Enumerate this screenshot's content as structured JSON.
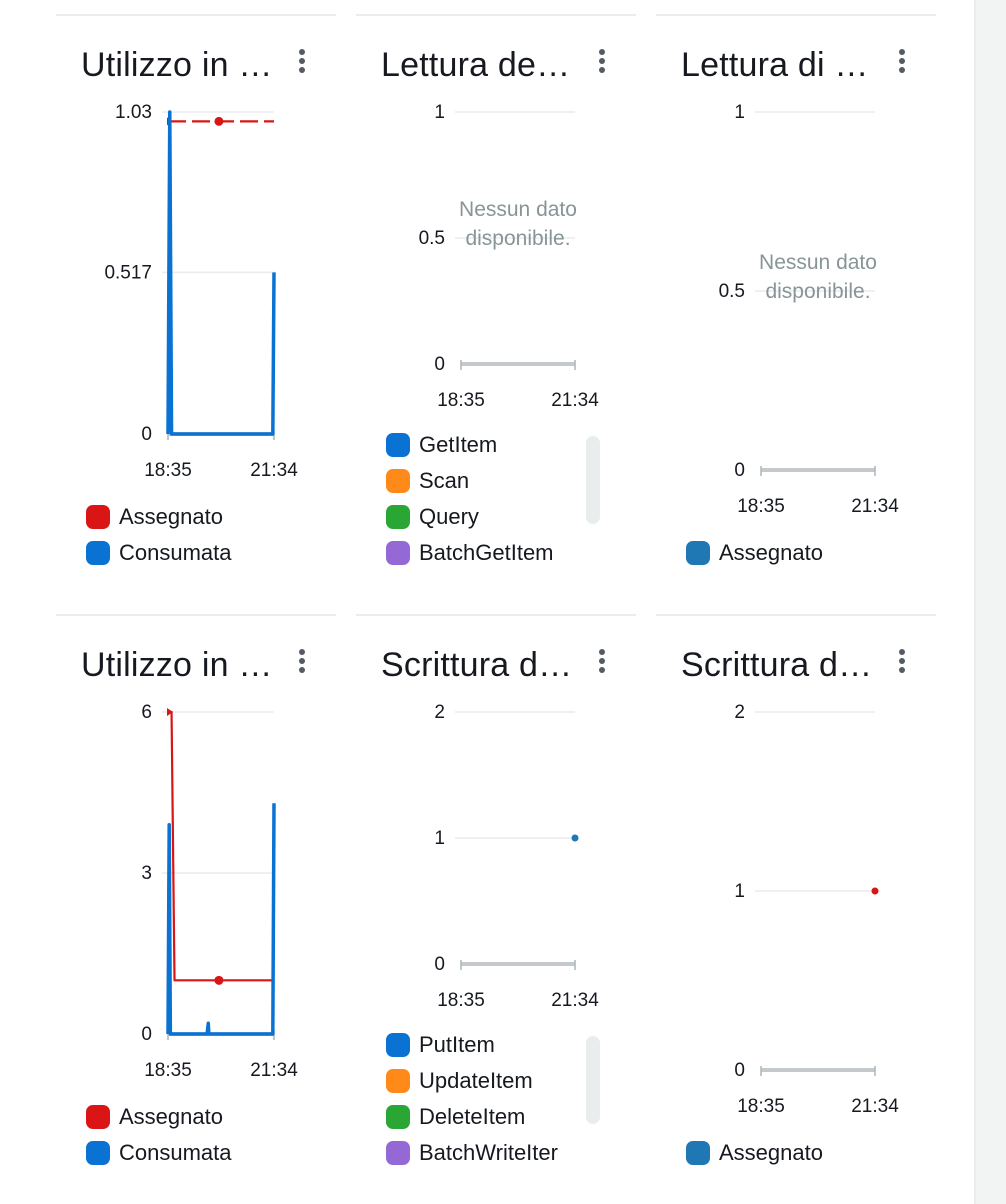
{
  "widgets": [
    {
      "title": "Utilizzo in …",
      "chart": {
        "ylim": [
          0,
          1.03
        ],
        "yticks": [
          "0",
          "0.517",
          "1.03"
        ]
      },
      "legend": [
        {
          "label": "Assegnato",
          "color": "#d91515"
        },
        {
          "label": "Consumata",
          "color": "#0972d3"
        }
      ]
    },
    {
      "title": "Lettura de…",
      "chart": {
        "ylim": [
          0,
          1
        ],
        "yticks": [
          "0",
          "0.5",
          "1"
        ],
        "no_data": [
          "Nessun dato",
          "disponibile."
        ]
      },
      "legend": [
        {
          "label": "GetItem",
          "color": "#0972d3"
        },
        {
          "label": "Scan",
          "color": "#ff8a1a"
        },
        {
          "label": "Query",
          "color": "#29a634"
        },
        {
          "label": "BatchGetItem",
          "color": "#9469d6"
        }
      ]
    },
    {
      "title": "Lettura di …",
      "chart": {
        "ylim": [
          0,
          1
        ],
        "yticks": [
          "0",
          "0.5",
          "1"
        ],
        "no_data": [
          "Nessun dato",
          "disponibile."
        ]
      },
      "legend": [
        {
          "label": "Assegnato",
          "color": "#1f77b4"
        }
      ]
    },
    {
      "title": "Utilizzo in …",
      "chart": {
        "ylim": [
          0,
          6
        ],
        "yticks": [
          "0",
          "3",
          "6"
        ]
      },
      "legend": [
        {
          "label": "Assegnato",
          "color": "#d91515"
        },
        {
          "label": "Consumata",
          "color": "#0972d3"
        }
      ]
    },
    {
      "title": "Scrittura d…",
      "chart": {
        "ylim": [
          0,
          2
        ],
        "yticks": [
          "0",
          "1",
          "2"
        ]
      },
      "legend": [
        {
          "label": "PutItem",
          "color": "#0972d3"
        },
        {
          "label": "UpdateItem",
          "color": "#ff8a1a"
        },
        {
          "label": "DeleteItem",
          "color": "#29a634"
        },
        {
          "label": "BatchWriteIter",
          "color": "#9469d6"
        }
      ]
    },
    {
      "title": "Scrittura d…",
      "chart": {
        "ylim": [
          0,
          2
        ],
        "yticks": [
          "0",
          "1",
          "2"
        ]
      },
      "legend": [
        {
          "label": "Assegnato",
          "color": "#1f77b4"
        }
      ]
    }
  ],
  "chart_data": [
    {
      "type": "line",
      "x": [
        "18:35",
        "21:34"
      ],
      "ylim": [
        0,
        1.03
      ],
      "series": [
        {
          "name": "Assegnato",
          "style": "dashed",
          "points": [
            [
              "18:35",
              1
            ],
            [
              "20:01",
              1
            ],
            [
              "21:34",
              1
            ]
          ]
        },
        {
          "name": "Consumata",
          "points": [
            [
              "18:35",
              0
            ],
            [
              "18:38",
              1.03
            ],
            [
              "18:41",
              0
            ],
            [
              "21:32",
              0
            ],
            [
              "21:34",
              0.517
            ]
          ]
        }
      ]
    },
    {
      "type": "line",
      "x": [
        "18:35",
        "21:34"
      ],
      "ylim": [
        0,
        1
      ],
      "series": [],
      "empty": true
    },
    {
      "type": "line",
      "x": [
        "18:35",
        "21:34"
      ],
      "ylim": [
        0,
        1
      ],
      "series": [],
      "empty": true
    },
    {
      "type": "line",
      "x": [
        "18:35",
        "21:34"
      ],
      "ylim": [
        0,
        6
      ],
      "series": [
        {
          "name": "Assegnato",
          "points": [
            [
              "18:35",
              6
            ],
            [
              "18:41",
              6
            ],
            [
              "18:46",
              1
            ],
            [
              "20:01",
              1
            ],
            [
              "21:34",
              1
            ]
          ]
        },
        {
          "name": "Consumata",
          "points": [
            [
              "18:35",
              0
            ],
            [
              "18:37",
              3.9
            ],
            [
              "18:39",
              0
            ],
            [
              "19:41",
              0
            ],
            [
              "19:43",
              0.2
            ],
            [
              "19:44",
              0
            ],
            [
              "21:32",
              0
            ],
            [
              "21:34",
              4.3
            ]
          ]
        }
      ]
    },
    {
      "type": "line",
      "x": [
        "18:35",
        "21:34"
      ],
      "ylim": [
        0,
        2
      ],
      "series": [
        {
          "name": "PutItem",
          "points": [
            [
              "21:34",
              1
            ]
          ]
        }
      ]
    },
    {
      "type": "line",
      "x": [
        "18:35",
        "21:34"
      ],
      "ylim": [
        0,
        2
      ],
      "series": [
        {
          "name": "Assegnato",
          "points": [
            [
              "21:34",
              1
            ]
          ]
        }
      ]
    }
  ]
}
